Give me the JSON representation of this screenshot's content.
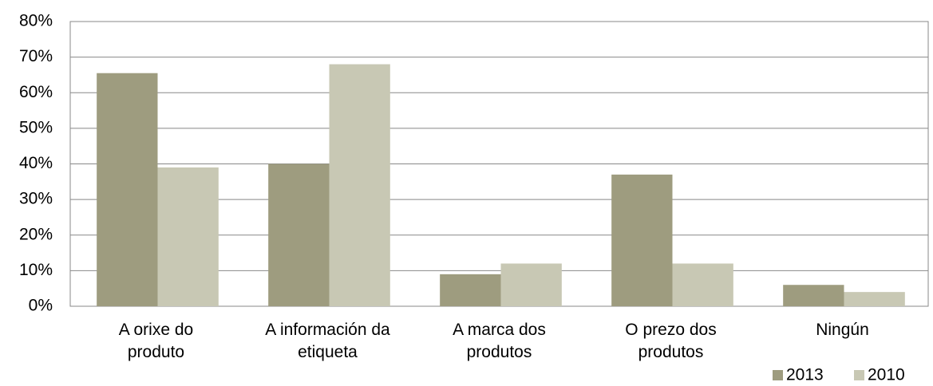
{
  "chart_data": {
    "type": "bar",
    "categories": [
      "A orixe do\nproduto",
      "A información da\netiqueta",
      "A marca dos\nprodutos",
      "O prezo dos\nprodutos",
      "Ningún"
    ],
    "series": [
      {
        "name": "2013",
        "color": "#9e9c7f",
        "values": [
          65.5,
          40,
          9,
          37,
          6
        ]
      },
      {
        "name": "2010",
        "color": "#c8c8b4",
        "values": [
          39,
          68,
          12,
          12,
          4
        ]
      }
    ],
    "ylim": [
      0,
      80
    ],
    "yticks": [
      {
        "value": 0,
        "label": "0%"
      },
      {
        "value": 10,
        "label": "10%"
      },
      {
        "value": 20,
        "label": "20%"
      },
      {
        "value": 30,
        "label": "30%"
      },
      {
        "value": 40,
        "label": "40%"
      },
      {
        "value": 50,
        "label": "50%"
      },
      {
        "value": 60,
        "label": "60%"
      },
      {
        "value": 70,
        "label": "70%"
      },
      {
        "value": 80,
        "label": "80%"
      }
    ],
    "grid": true,
    "legend": "bottom-right"
  }
}
